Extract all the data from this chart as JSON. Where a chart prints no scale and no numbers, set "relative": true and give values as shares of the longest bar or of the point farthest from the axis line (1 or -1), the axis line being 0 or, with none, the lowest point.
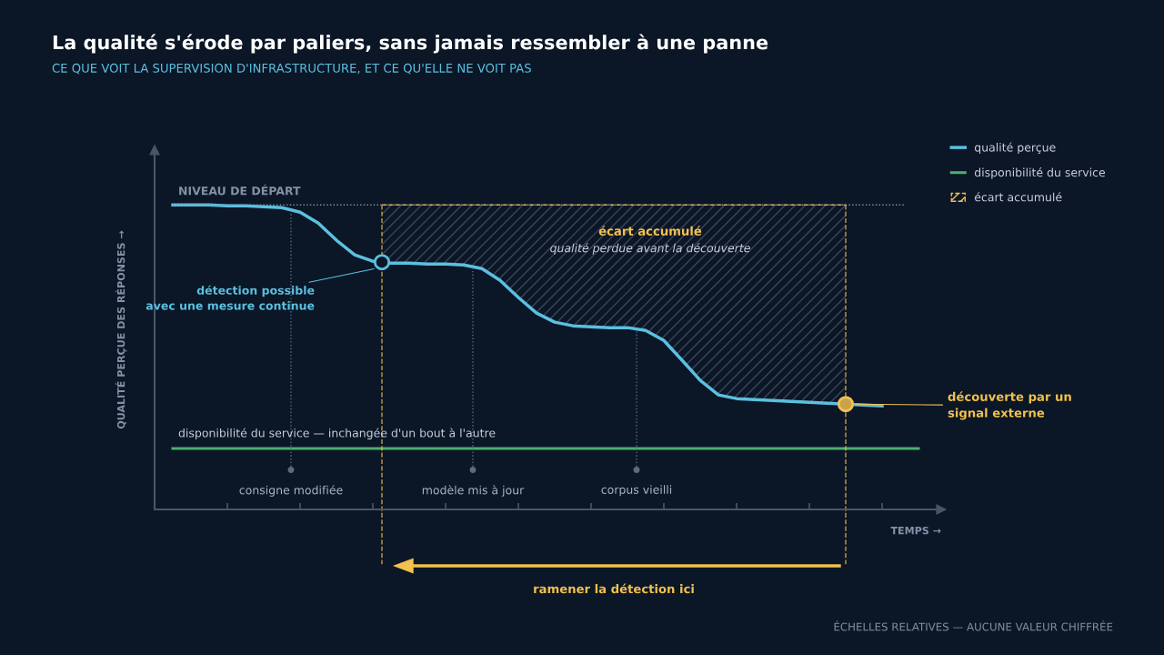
{
  "chart_data": {
    "type": "line",
    "relative": true,
    "title": "La qualité s'érode par paliers, sans jamais ressembler à une panne",
    "subtitle": "CE QUE VOIT LA SUPERVISION D'INFRASTRUCTURE, ET CE QU'ELLE NE VOIT PAS",
    "xlabel": "TEMPS →",
    "ylabel": "QUALITÉ PERÇUE DES RÉPONSES →",
    "categories": [
      null,
      null,
      null,
      null,
      null,
      null,
      null,
      null,
      null,
      null,
      null,
      null,
      null,
      null,
      null,
      null,
      null,
      null,
      null,
      null,
      null,
      null,
      null,
      null,
      null,
      null,
      null,
      null,
      null,
      null,
      null,
      null,
      null,
      null,
      null,
      null,
      null,
      null,
      null,
      null,
      null,
      null
    ],
    "series": [
      {
        "name": "qualité perçue",
        "color": "#5bc0e0",
        "values": [
          1.0,
          1.0,
          1.0,
          0.997,
          0.997,
          0.994,
          0.991,
          0.976,
          0.94,
          0.884,
          0.836,
          0.815,
          0.809,
          0.809,
          0.806,
          0.806,
          0.803,
          0.791,
          0.752,
          0.696,
          0.645,
          0.615,
          0.603,
          0.6,
          0.597,
          0.597,
          0.588,
          0.555,
          0.49,
          0.424,
          0.376,
          0.364,
          0.361,
          0.358,
          0.355,
          0.352,
          0.349,
          0.346,
          0.343,
          0.34,
          null,
          null
        ]
      },
      {
        "name": "disponibilité du service",
        "color": "#4caf6e",
        "values": [
          0.2,
          0.2,
          0.2,
          0.2,
          0.2,
          0.2,
          0.2,
          0.2,
          0.2,
          0.2,
          0.2,
          0.2,
          0.2,
          0.2,
          0.2,
          0.2,
          0.2,
          0.2,
          0.2,
          0.2,
          0.2,
          0.2,
          0.2,
          0.2,
          0.2,
          0.2,
          0.2,
          0.2,
          0.2,
          0.2,
          0.2,
          0.2,
          0.2,
          0.2,
          0.2,
          0.2,
          0.2,
          0.2,
          0.2,
          0.2,
          0.2,
          0.2
        ]
      }
    ],
    "ref_lines": [
      {
        "axis": "y",
        "value": 1.0,
        "label": "NIVEAU DE DÉPART",
        "color": "#8391a6",
        "line_style": "dotted"
      }
    ],
    "annotations": [
      "écart accumulé",
      "qualité perdue avant la découverte",
      "détection possible\navec une mesure continue",
      "découverte par un\nsignal externe",
      "disponibilité du service — inchangée d'un bout à l'autre",
      "ramener la détection ici",
      "ÉCHELLES RELATIVES — AUCUNE VALEUR CHIFFRÉE",
      "consigne modifiée",
      "modèle mis à jour",
      "corpus vieilli"
    ],
    "legend": "top right",
    "grid": false,
    "marker": "none",
    "line_style": "solid"
  }
}
